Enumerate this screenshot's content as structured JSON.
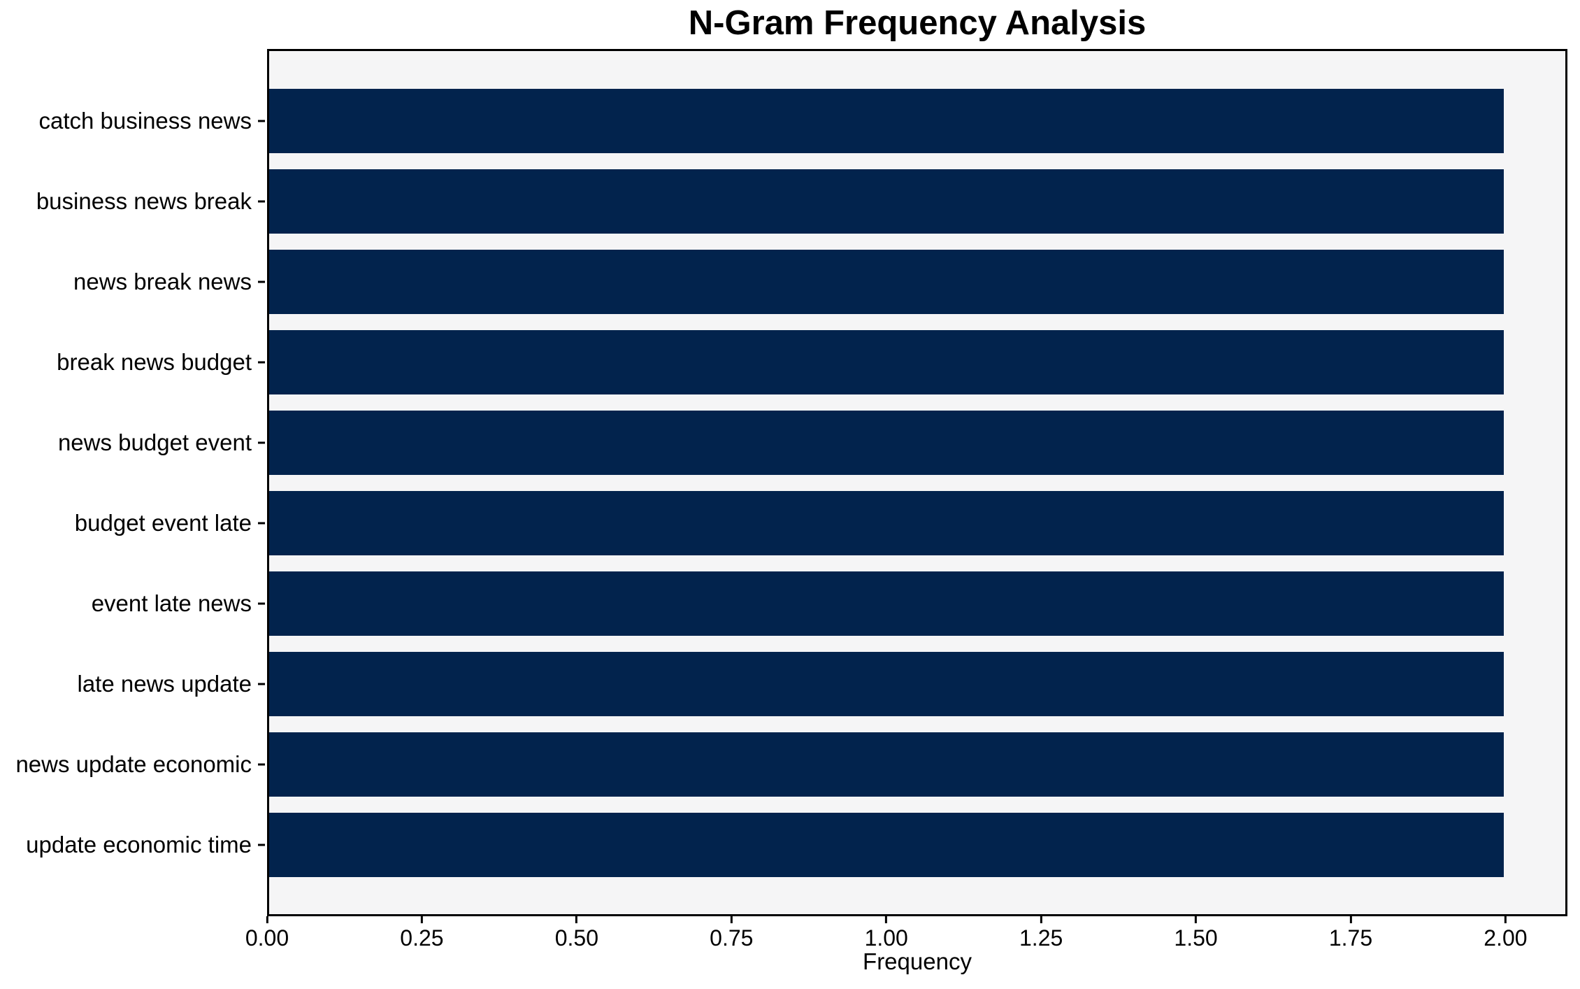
{
  "chart_data": {
    "type": "bar",
    "orientation": "horizontal",
    "title": "N-Gram Frequency Analysis",
    "xlabel": "Frequency",
    "ylabel": "",
    "categories": [
      "catch business news",
      "business news break",
      "news break news",
      "break news budget",
      "news budget event",
      "budget event late",
      "event late news",
      "late news update",
      "news update economic",
      "update economic time"
    ],
    "values": [
      2,
      2,
      2,
      2,
      2,
      2,
      2,
      2,
      2,
      2
    ],
    "xlim": [
      0,
      2.1
    ],
    "xticks": [
      0.0,
      0.25,
      0.5,
      0.75,
      1.0,
      1.25,
      1.5,
      1.75,
      2.0
    ],
    "xtick_labels": [
      "0.00",
      "0.25",
      "0.50",
      "0.75",
      "1.00",
      "1.25",
      "1.50",
      "1.75",
      "2.00"
    ],
    "grid": false,
    "legend_position": "none",
    "colors": {
      "bar": "#02234d",
      "plot_background": "#f5f5f6",
      "figure_background": "#ffffff",
      "spine": "#000000",
      "text": "#000000"
    }
  }
}
